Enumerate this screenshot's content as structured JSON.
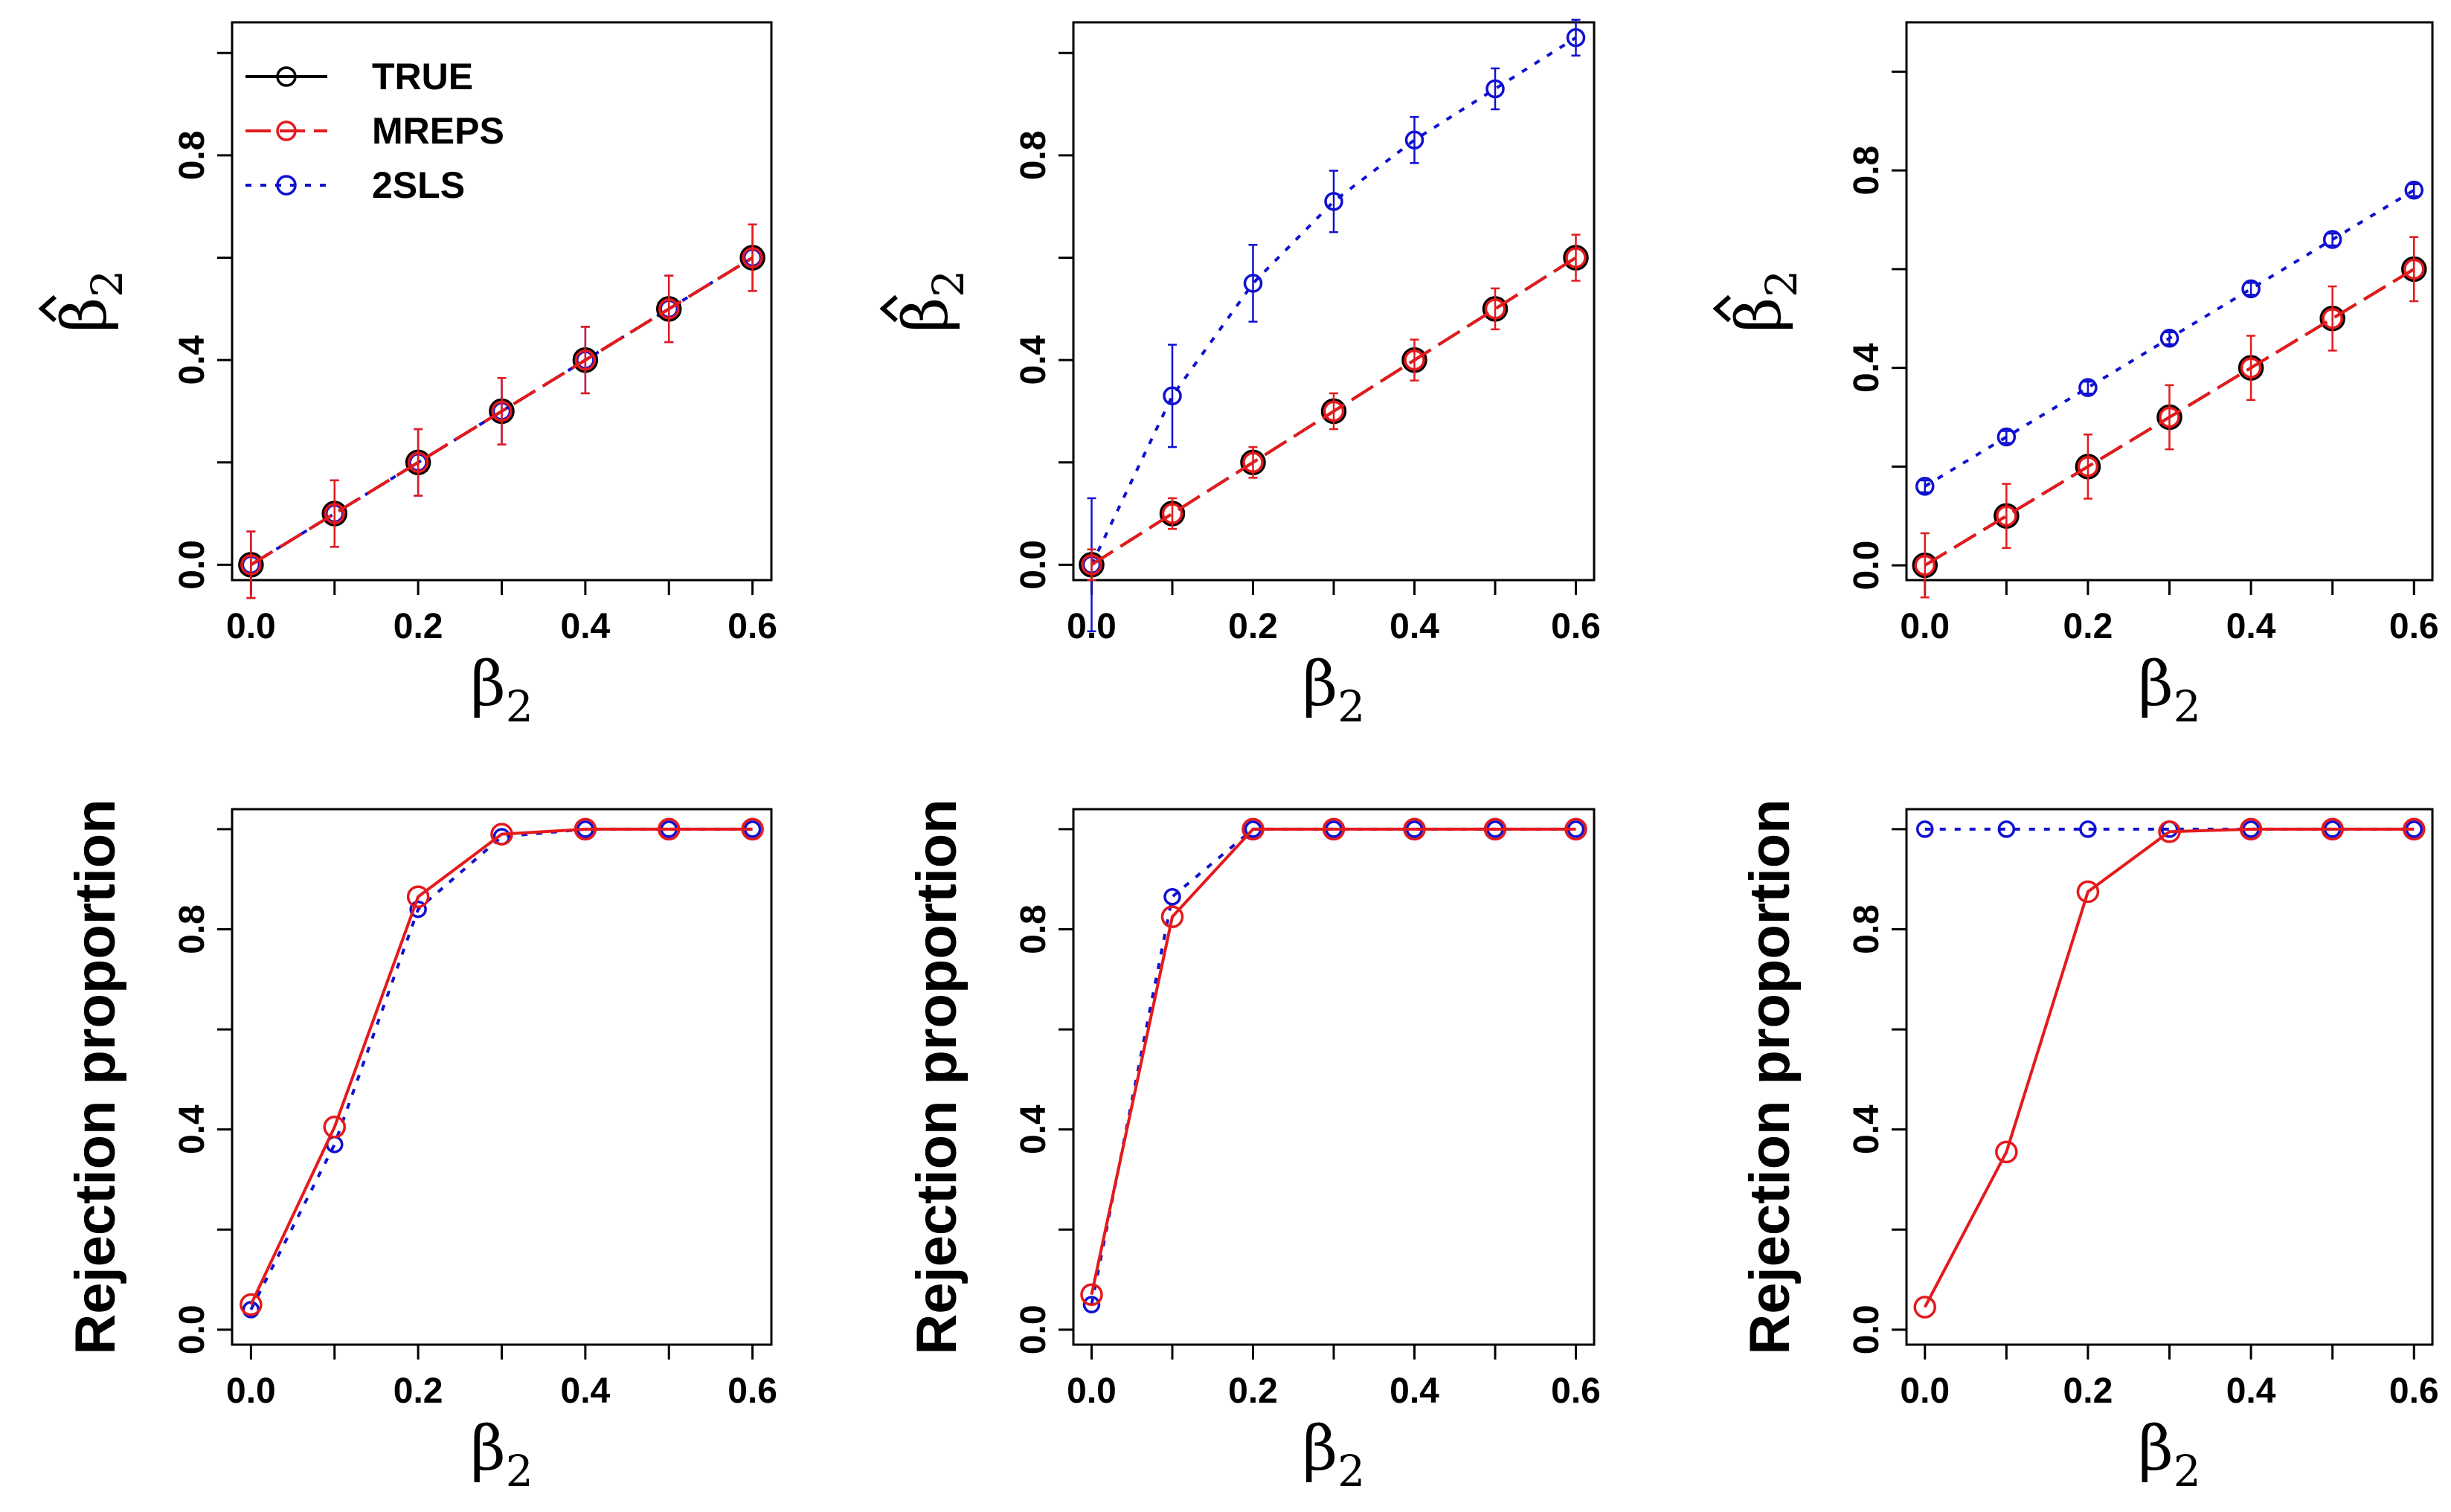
{
  "colors": {
    "TRUE": "#000000",
    "MREPS": "#e41a1c",
    "2SLS": "#1010d0"
  },
  "legend": [
    {
      "label": "TRUE",
      "key": "TRUE"
    },
    {
      "label": "MREPS",
      "key": "MREPS"
    },
    {
      "label": "2SLS",
      "key": "2SLS"
    }
  ],
  "chart_data": [
    {
      "type": "line",
      "row": 0,
      "col": 0,
      "xlabel": "β2",
      "ylabel": "β̂2",
      "xlim": [
        0,
        0.6
      ],
      "ylim": [
        -0.03,
        1.06
      ],
      "xticks": [
        0.0,
        0.2,
        0.4,
        0.6
      ],
      "xtick_labels": [
        "0.0",
        "0.2",
        "0.4",
        "0.6"
      ],
      "yticks": [
        0.0,
        0.4,
        0.8
      ],
      "ytick_labels": [
        "0.0",
        "0.4",
        "0.8"
      ],
      "legend_position": "top-left",
      "x": [
        0.0,
        0.1,
        0.2,
        0.3,
        0.4,
        0.5,
        0.6
      ],
      "series": [
        {
          "name": "TRUE",
          "values": [
            0.0,
            0.1,
            0.2,
            0.3,
            0.4,
            0.5,
            0.6
          ]
        },
        {
          "name": "MREPS",
          "values": [
            0.0,
            0.1,
            0.2,
            0.3,
            0.4,
            0.5,
            0.6
          ],
          "err": [
            0.065,
            0.065,
            0.065,
            0.065,
            0.065,
            0.065,
            0.065
          ]
        },
        {
          "name": "2SLS",
          "values": [
            0.0,
            0.1,
            0.2,
            0.3,
            0.4,
            0.5,
            0.6
          ],
          "err": [
            0.065,
            0.065,
            0.065,
            0.065,
            0.065,
            0.065,
            0.065
          ]
        }
      ]
    },
    {
      "type": "line",
      "row": 0,
      "col": 1,
      "xlabel": "β2",
      "ylabel": "β̂2",
      "xlim": [
        0,
        0.6
      ],
      "ylim": [
        -0.03,
        1.06
      ],
      "xticks": [
        0.0,
        0.2,
        0.4,
        0.6
      ],
      "xtick_labels": [
        "0.0",
        "0.2",
        "0.4",
        "0.6"
      ],
      "yticks": [
        0.0,
        0.4,
        0.8
      ],
      "ytick_labels": [
        "0.0",
        "0.4",
        "0.8"
      ],
      "x": [
        0.0,
        0.1,
        0.2,
        0.3,
        0.4,
        0.5,
        0.6
      ],
      "series": [
        {
          "name": "TRUE",
          "values": [
            0.0,
            0.1,
            0.2,
            0.3,
            0.4,
            0.5,
            0.6
          ]
        },
        {
          "name": "MREPS",
          "values": [
            0.0,
            0.1,
            0.2,
            0.3,
            0.4,
            0.5,
            0.6
          ],
          "err": [
            0.03,
            0.03,
            0.03,
            0.035,
            0.04,
            0.04,
            0.045
          ]
        },
        {
          "name": "2SLS",
          "values": [
            0.0,
            0.33,
            0.55,
            0.71,
            0.83,
            0.93,
            1.03
          ],
          "err": [
            0.13,
            0.1,
            0.075,
            0.06,
            0.045,
            0.04,
            0.035
          ]
        }
      ]
    },
    {
      "type": "line",
      "row": 0,
      "col": 2,
      "xlabel": "β2",
      "ylabel": "β̂2",
      "xlim": [
        0,
        0.6
      ],
      "ylim": [
        -0.03,
        1.1
      ],
      "xticks": [
        0.0,
        0.2,
        0.4,
        0.6
      ],
      "xtick_labels": [
        "0.0",
        "0.2",
        "0.4",
        "0.6"
      ],
      "yticks": [
        0.0,
        0.4,
        0.8
      ],
      "ytick_labels": [
        "0.0",
        "0.4",
        "0.8"
      ],
      "x": [
        0.0,
        0.1,
        0.2,
        0.3,
        0.4,
        0.5,
        0.6
      ],
      "series": [
        {
          "name": "TRUE",
          "values": [
            0.0,
            0.1,
            0.2,
            0.3,
            0.4,
            0.5,
            0.6
          ]
        },
        {
          "name": "MREPS",
          "values": [
            0.0,
            0.1,
            0.2,
            0.3,
            0.4,
            0.5,
            0.6
          ],
          "err": [
            0.065,
            0.065,
            0.065,
            0.065,
            0.065,
            0.065,
            0.065
          ]
        },
        {
          "name": "2SLS",
          "values": [
            0.16,
            0.26,
            0.36,
            0.46,
            0.56,
            0.66,
            0.76
          ],
          "err": [
            0.012,
            0.012,
            0.012,
            0.012,
            0.012,
            0.012,
            0.012
          ]
        }
      ]
    },
    {
      "type": "line",
      "row": 1,
      "col": 0,
      "xlabel": "β2",
      "ylabel": "Rejection proportion",
      "xlim": [
        0,
        0.6
      ],
      "ylim": [
        -0.03,
        1.04
      ],
      "xticks": [
        0.0,
        0.2,
        0.4,
        0.6
      ],
      "xtick_labels": [
        "0.0",
        "0.2",
        "0.4",
        "0.6"
      ],
      "yticks": [
        0.0,
        0.4,
        0.8
      ],
      "ytick_labels": [
        "0.0",
        "0.4",
        "0.8"
      ],
      "x": [
        0.0,
        0.1,
        0.2,
        0.3,
        0.4,
        0.5,
        0.6
      ],
      "series": [
        {
          "name": "MREPS",
          "values": [
            0.05,
            0.405,
            0.865,
            0.99,
            1.0,
            1.0,
            1.0
          ]
        },
        {
          "name": "2SLS",
          "values": [
            0.04,
            0.37,
            0.84,
            0.985,
            1.0,
            1.0,
            1.0
          ]
        }
      ]
    },
    {
      "type": "line",
      "row": 1,
      "col": 1,
      "xlabel": "β2",
      "ylabel": "Rejection proportion",
      "xlim": [
        0,
        0.6
      ],
      "ylim": [
        -0.03,
        1.04
      ],
      "xticks": [
        0.0,
        0.2,
        0.4,
        0.6
      ],
      "xtick_labels": [
        "0.0",
        "0.2",
        "0.4",
        "0.6"
      ],
      "yticks": [
        0.0,
        0.4,
        0.8
      ],
      "ytick_labels": [
        "0.0",
        "0.4",
        "0.8"
      ],
      "x": [
        0.0,
        0.1,
        0.2,
        0.3,
        0.4,
        0.5,
        0.6
      ],
      "series": [
        {
          "name": "MREPS",
          "values": [
            0.07,
            0.825,
            1.0,
            1.0,
            1.0,
            1.0,
            1.0
          ]
        },
        {
          "name": "2SLS",
          "values": [
            0.05,
            0.865,
            1.0,
            1.0,
            1.0,
            1.0,
            1.0
          ]
        }
      ]
    },
    {
      "type": "line",
      "row": 1,
      "col": 2,
      "xlabel": "β2",
      "ylabel": "Rejection proportion",
      "xlim": [
        0,
        0.6
      ],
      "ylim": [
        -0.03,
        1.04
      ],
      "xticks": [
        0.0,
        0.2,
        0.4,
        0.6
      ],
      "xtick_labels": [
        "0.0",
        "0.2",
        "0.4",
        "0.6"
      ],
      "yticks": [
        0.0,
        0.4,
        0.8
      ],
      "ytick_labels": [
        "0.0",
        "0.4",
        "0.8"
      ],
      "x": [
        0.0,
        0.1,
        0.2,
        0.3,
        0.4,
        0.5,
        0.6
      ],
      "series": [
        {
          "name": "MREPS",
          "values": [
            0.045,
            0.355,
            0.875,
            0.995,
            1.0,
            1.0,
            1.0
          ]
        },
        {
          "name": "2SLS",
          "values": [
            1.0,
            1.0,
            1.0,
            1.0,
            1.0,
            1.0,
            1.0
          ]
        }
      ]
    }
  ]
}
